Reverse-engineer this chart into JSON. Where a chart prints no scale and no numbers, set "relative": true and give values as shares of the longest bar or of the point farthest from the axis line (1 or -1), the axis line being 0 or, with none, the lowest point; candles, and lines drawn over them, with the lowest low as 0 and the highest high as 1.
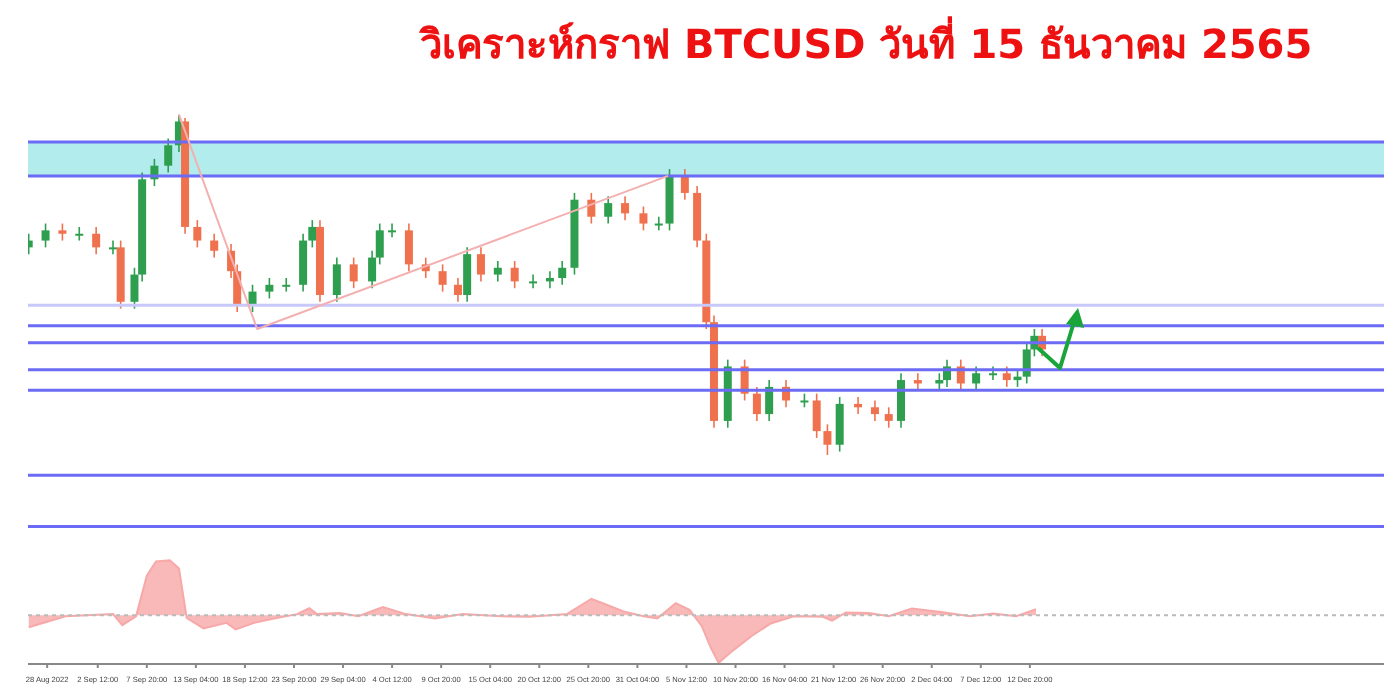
{
  "chart_data": [
    {
      "type": "candlestick",
      "title": "วิเคราะห์กราฟ BTCUSD วันที่ 15 ธันวาคม 2565",
      "relative": true,
      "tick_labels": false,
      "x": [
        "2022-08-26T00:00",
        "2022-08-27T20:00",
        "2022-08-29T16:00",
        "2022-08-31T12:00",
        "2022-09-02T08:00",
        "2022-09-04T04:00",
        "2022-09-05T00:00",
        "2022-09-06T12:00",
        "2022-09-07T08:00",
        "2022-09-08T16:00",
        "2022-09-10T04:00",
        "2022-09-11T08:00",
        "2022-09-12T00:00",
        "2022-09-13T08:00",
        "2022-09-15T04:00",
        "2022-09-17T00:00",
        "2022-09-17T16:00",
        "2022-09-19T08:00",
        "2022-09-21T04:00",
        "2022-09-23T00:00",
        "2022-09-24T20:00",
        "2022-09-25T20:00",
        "2022-09-26T16:00",
        "2022-09-28T12:00",
        "2022-09-30T08:00",
        "2022-10-02T08:00",
        "2022-10-03T04:00",
        "2022-10-04T12:00",
        "2022-10-06T08:00",
        "2022-10-08T04:00",
        "2022-10-10T00:00",
        "2022-10-11T16:00",
        "2022-10-12T16:00",
        "2022-10-14T04:00",
        "2022-10-16T00:00",
        "2022-10-17T20:00",
        "2022-10-19T20:00",
        "2022-10-21T16:00",
        "2022-10-23T00:00",
        "2022-10-24T08:00",
        "2022-10-26T04:00",
        "2022-10-28T00:00",
        "2022-10-29T20:00",
        "2022-10-31T20:00",
        "2022-11-02T12:00",
        "2022-11-03T16:00",
        "2022-11-05T08:00",
        "2022-11-06T16:00",
        "2022-11-07T16:00",
        "2022-11-08T12:00",
        "2022-11-10T00:00",
        "2022-11-11T20:00",
        "2022-11-13T04:00",
        "2022-11-14T12:00",
        "2022-11-16T08:00",
        "2022-11-18T08:00",
        "2022-11-19T16:00",
        "2022-11-20T20:00",
        "2022-11-22T04:00",
        "2022-11-24T04:00",
        "2022-11-26T00:00",
        "2022-11-27T12:00",
        "2022-11-28T20:00",
        "2022-11-30T16:00",
        "2022-12-03T00:00",
        "2022-12-03T20:00",
        "2022-12-05T08:00",
        "2022-12-07T00:00",
        "2022-12-08T20:00",
        "2022-12-10T08:00",
        "2022-12-11T12:00",
        "2022-12-12T12:00",
        "2022-12-13T08:00",
        "2022-12-14T04:00"
      ],
      "ohlc": [
        [
          0.61,
          0.65,
          0.59,
          0.63
        ],
        [
          0.63,
          0.68,
          0.61,
          0.66
        ],
        [
          0.66,
          0.68,
          0.63,
          0.65
        ],
        [
          0.65,
          0.67,
          0.63,
          0.65
        ],
        [
          0.65,
          0.67,
          0.59,
          0.61
        ],
        [
          0.61,
          0.63,
          0.59,
          0.61
        ],
        [
          0.61,
          0.63,
          0.43,
          0.45
        ],
        [
          0.45,
          0.55,
          0.43,
          0.53
        ],
        [
          0.53,
          0.83,
          0.51,
          0.81
        ],
        [
          0.81,
          0.87,
          0.79,
          0.85
        ],
        [
          0.85,
          0.93,
          0.83,
          0.91
        ],
        [
          0.91,
          1,
          0.89,
          0.98
        ],
        [
          0.98,
          0.99,
          0.65,
          0.67
        ],
        [
          0.67,
          0.69,
          0.61,
          0.63
        ],
        [
          0.63,
          0.65,
          0.58,
          0.6
        ],
        [
          0.6,
          0.62,
          0.52,
          0.54
        ],
        [
          0.54,
          0.56,
          0.42,
          0.44
        ],
        [
          0.44,
          0.5,
          0.42,
          0.48
        ],
        [
          0.48,
          0.52,
          0.46,
          0.5
        ],
        [
          0.5,
          0.52,
          0.48,
          0.5
        ],
        [
          0.5,
          0.65,
          0.48,
          0.63
        ],
        [
          0.63,
          0.69,
          0.61,
          0.67
        ],
        [
          0.67,
          0.69,
          0.45,
          0.47
        ],
        [
          0.47,
          0.58,
          0.45,
          0.56
        ],
        [
          0.56,
          0.58,
          0.49,
          0.51
        ],
        [
          0.51,
          0.6,
          0.49,
          0.58
        ],
        [
          0.58,
          0.68,
          0.56,
          0.66
        ],
        [
          0.66,
          0.68,
          0.64,
          0.66
        ],
        [
          0.66,
          0.68,
          0.54,
          0.56
        ],
        [
          0.56,
          0.58,
          0.52,
          0.54
        ],
        [
          0.54,
          0.56,
          0.48,
          0.5
        ],
        [
          0.5,
          0.52,
          0.45,
          0.47
        ],
        [
          0.47,
          0.61,
          0.45,
          0.59
        ],
        [
          0.59,
          0.61,
          0.51,
          0.53
        ],
        [
          0.53,
          0.57,
          0.51,
          0.55
        ],
        [
          0.55,
          0.57,
          0.49,
          0.51
        ],
        [
          0.51,
          0.53,
          0.49,
          0.51
        ],
        [
          0.51,
          0.54,
          0.49,
          0.52
        ],
        [
          0.52,
          0.57,
          0.5,
          0.55
        ],
        [
          0.55,
          0.77,
          0.53,
          0.75
        ],
        [
          0.75,
          0.77,
          0.68,
          0.7
        ],
        [
          0.7,
          0.76,
          0.68,
          0.74
        ],
        [
          0.74,
          0.76,
          0.69,
          0.71
        ],
        [
          0.71,
          0.73,
          0.66,
          0.68
        ],
        [
          0.68,
          0.7,
          0.66,
          0.68
        ],
        [
          0.68,
          0.84,
          0.66,
          0.82
        ],
        [
          0.82,
          0.84,
          0.75,
          0.77
        ],
        [
          0.77,
          0.79,
          0.61,
          0.63
        ],
        [
          0.63,
          0.65,
          0.37,
          0.39
        ],
        [
          0.39,
          0.41,
          0.08,
          0.1
        ],
        [
          0.1,
          0.28,
          0.08,
          0.26
        ],
        [
          0.26,
          0.28,
          0.16,
          0.18
        ],
        [
          0.18,
          0.2,
          0.1,
          0.12
        ],
        [
          0.12,
          0.22,
          0.1,
          0.2
        ],
        [
          0.2,
          0.22,
          0.14,
          0.16
        ],
        [
          0.16,
          0.18,
          0.14,
          0.16
        ],
        [
          0.16,
          0.18,
          0.05,
          0.07
        ],
        [
          0.07,
          0.09,
          0,
          0.03
        ],
        [
          0.03,
          0.17,
          0.01,
          0.15
        ],
        [
          0.15,
          0.17,
          0.12,
          0.14
        ],
        [
          0.14,
          0.16,
          0.1,
          0.12
        ],
        [
          0.12,
          0.14,
          0.08,
          0.1
        ],
        [
          0.1,
          0.24,
          0.08,
          0.22
        ],
        [
          0.22,
          0.24,
          0.19,
          0.21
        ],
        [
          0.21,
          0.24,
          0.19,
          0.22
        ],
        [
          0.22,
          0.28,
          0.2,
          0.26
        ],
        [
          0.26,
          0.28,
          0.19,
          0.21
        ],
        [
          0.21,
          0.26,
          0.19,
          0.24
        ],
        [
          0.24,
          0.26,
          0.22,
          0.24
        ],
        [
          0.24,
          0.26,
          0.2,
          0.22
        ],
        [
          0.22,
          0.25,
          0.2,
          0.23
        ],
        [
          0.23,
          0.33,
          0.21,
          0.31
        ],
        [
          0.31,
          0.37,
          0.29,
          0.35
        ],
        [
          0.35,
          0.37,
          0.29,
          0.31
        ]
      ],
      "series": [
        {
          "type": "line",
          "color": "#f4b0b0",
          "x": [
            "2022-09-11T08:00",
            "2022-09-19T20:00",
            "2022-11-03T12:00"
          ],
          "values": [
            1,
            0.37,
            0.82
          ]
        }
      ],
      "bands": [
        {
          "axis": "y",
          "from": 0.82,
          "to": 0.92,
          "color": "#b2ecec"
        }
      ],
      "ref_lines": [
        {
          "axis": "y",
          "value": 0.92,
          "color": "#6b6bf5"
        },
        {
          "axis": "y",
          "value": 0.82,
          "color": "#6b6bf5"
        },
        {
          "axis": "y",
          "value": 0.44,
          "color": "#c8c8fa"
        },
        {
          "axis": "y",
          "value": 0.38,
          "color": "#6b6bf5"
        },
        {
          "axis": "y",
          "value": 0.33,
          "color": "#6b6bf5"
        },
        {
          "axis": "y",
          "value": 0.25,
          "color": "#6b6bf5"
        },
        {
          "axis": "y",
          "value": 0.19,
          "color": "#6b6bf5"
        },
        {
          "axis": "y",
          "value": -0.06,
          "color": "#6b6bf5"
        },
        {
          "axis": "y",
          "value": -0.21,
          "color": "#6b6bf5"
        }
      ],
      "xlim": [
        "2022-08-25T22:00",
        "2023-01-20T08:00"
      ]
    },
    {
      "type": "area",
      "relative": true,
      "tick_labels": "x",
      "color": "#f7a8a8",
      "ref_lines": [
        {
          "axis": "y",
          "value": 0,
          "color": "#bbbbbb",
          "line_style": "dotted"
        }
      ],
      "x": [
        "2022-08-26T00:00",
        "2022-08-30T00:00",
        "2022-09-04T04:00",
        "2022-09-05T04:00",
        "2022-09-06T16:00",
        "2022-09-07T20:00",
        "2022-09-08T20:00",
        "2022-09-10T08:00",
        "2022-09-11T08:00",
        "2022-09-12T04:00",
        "2022-09-14T00:00",
        "2022-09-16T12:00",
        "2022-09-17T12:00",
        "2022-09-19T12:00",
        "2022-09-21T16:00",
        "2022-09-24T04:00",
        "2022-09-25T12:00",
        "2022-09-26T08:00",
        "2022-09-28T20:00",
        "2022-09-30T20:00",
        "2022-10-03T12:00",
        "2022-10-06T00:00",
        "2022-10-09T04:00",
        "2022-10-12T04:00",
        "2022-10-16T08:00",
        "2022-10-19T12:00",
        "2022-10-23T12:00",
        "2022-10-26T04:00",
        "2022-10-27T16:00",
        "2022-10-29T16:00",
        "2022-10-31T20:00",
        "2022-11-02T08:00",
        "2022-11-04T08:00",
        "2022-11-05T20:00",
        "2022-11-07T04:00",
        "2022-11-08T04:00",
        "2022-11-09T00:00",
        "2022-11-10T12:00",
        "2022-11-12T16:00",
        "2022-11-14T16:00",
        "2022-11-17T04:00",
        "2022-11-20T08:00",
        "2022-11-21T08:00",
        "2022-11-22T20:00",
        "2022-11-25T08:00",
        "2022-11-27T12:00",
        "2022-11-30T00:00",
        "2022-12-03T04:00",
        "2022-12-06T08:00",
        "2022-12-08T20:00",
        "2022-12-11T08:00",
        "2022-12-13T12:00"
      ],
      "values": [
        -0.22,
        -0.02,
        0.02,
        -0.18,
        -0.02,
        0.72,
        0.98,
        1,
        0.85,
        -0.05,
        -0.24,
        -0.14,
        -0.26,
        -0.14,
        -0.06,
        0.02,
        0.13,
        0.02,
        0.04,
        -0.02,
        0.15,
        0.02,
        -0.06,
        0.02,
        -0.02,
        -0.03,
        0.02,
        0.3,
        0.2,
        0.07,
        -0.02,
        -0.06,
        0.22,
        0.1,
        -0.2,
        -0.6,
        -0.87,
        -0.65,
        -0.37,
        -0.15,
        -0.02,
        -0.03,
        -0.1,
        0.05,
        0.04,
        -0.02,
        0.12,
        0.06,
        -0.02,
        0.03,
        -0.02,
        0.11
      ],
      "xlim": [
        "2022-08-25T22:00",
        "2023-01-20T08:00"
      ],
      "xticks": [
        {
          "value": "2022-08-28T00:00",
          "label": "28 Aug 2022"
        },
        {
          "value": "2022-09-02T12:00",
          "label": "2 Sep 12:00"
        },
        {
          "value": "2022-09-07T20:00",
          "label": "7 Sep 20:00"
        },
        {
          "value": "2022-09-13T04:00",
          "label": "13 Sep 04:00"
        },
        {
          "value": "2022-09-18T12:00",
          "label": "18 Sep 12:00"
        },
        {
          "value": "2022-09-23T20:00",
          "label": "23 Sep 20:00"
        },
        {
          "value": "2022-09-29T04:00",
          "label": "29 Sep 04:00"
        },
        {
          "value": "2022-10-04T12:00",
          "label": "4 Oct 12:00"
        },
        {
          "value": "2022-10-09T20:00",
          "label": "9 Oct 20:00"
        },
        {
          "value": "2022-10-15T04:00",
          "label": "15 Oct 04:00"
        },
        {
          "value": "2022-10-20T12:00",
          "label": "20 Oct 12:00"
        },
        {
          "value": "2022-10-25T20:00",
          "label": "25 Oct 20:00"
        },
        {
          "value": "2022-10-31T04:00",
          "label": "31 Oct 04:00"
        },
        {
          "value": "2022-11-05T12:00",
          "label": "5 Nov 12:00"
        },
        {
          "value": "2022-11-10T20:00",
          "label": "10 Nov 20:00"
        },
        {
          "value": "2022-11-16T04:00",
          "label": "16 Nov 04:00"
        },
        {
          "value": "2022-11-21T12:00",
          "label": "21 Nov 12:00"
        },
        {
          "value": "2022-11-26T20:00",
          "label": "26 Nov 20:00"
        },
        {
          "value": "2022-12-02T04:00",
          "label": "2 Dec 04:00"
        },
        {
          "value": "2022-12-07T12:00",
          "label": "7 Dec 12:00"
        },
        {
          "value": "2022-12-12T20:00",
          "label": "12 Dec 20:00"
        }
      ]
    }
  ]
}
